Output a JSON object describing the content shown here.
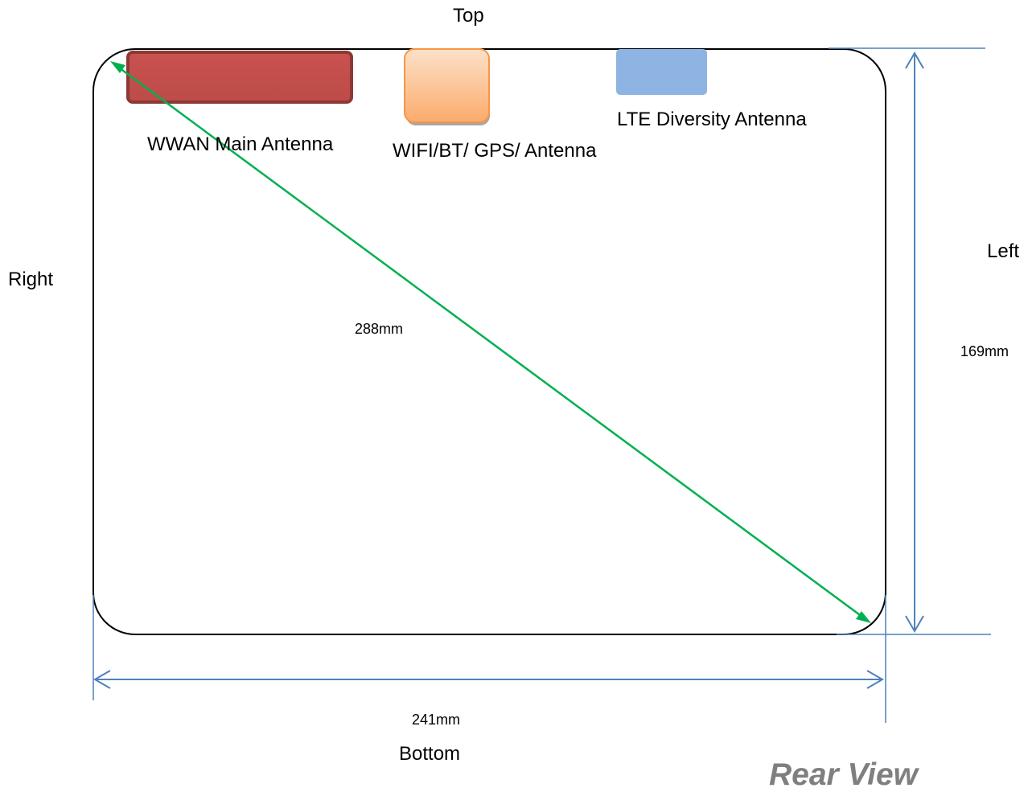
{
  "sides": {
    "top": "Top",
    "bottom": "Bottom",
    "left": "Left",
    "right": "Right"
  },
  "antennas": [
    {
      "label": "WWAN Main Antenna",
      "fill": "#c0504d",
      "border": "#8c3836"
    },
    {
      "label": "WIFI/BT/ GPS/ Antenna",
      "fill": "#fbbf8f",
      "border": "#f79646"
    },
    {
      "label": "LTE Diversity Antenna",
      "fill": "#8eb4e3",
      "border": "#8eb4e3"
    }
  ],
  "dimensions": {
    "diagonal": "288mm",
    "height": "169mm",
    "width": "241mm"
  },
  "view_title": "Rear View",
  "colors": {
    "diagonal_line": "#00b050",
    "dimension_line": "#4f81bd",
    "device_outline": "#000000"
  }
}
